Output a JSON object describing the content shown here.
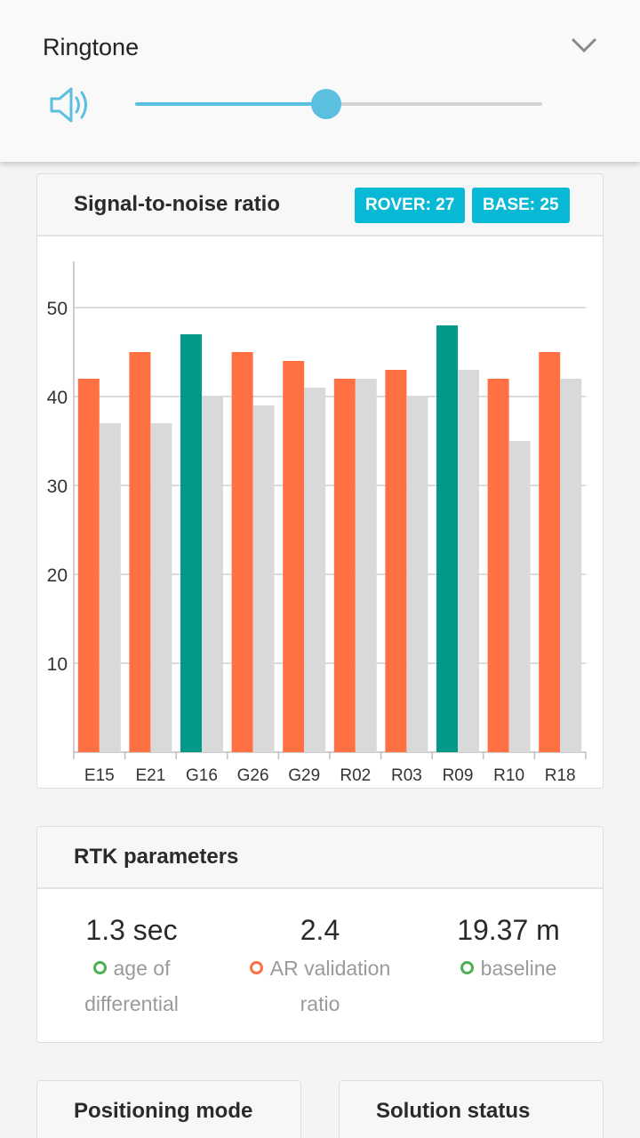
{
  "volume": {
    "title": "Ringtone",
    "level": 0.47
  },
  "snr_card": {
    "title": "Signal-to-noise ratio",
    "rover_badge": "ROVER: 27",
    "base_badge": "BASE: 25"
  },
  "chart_data": {
    "type": "bar",
    "categories": [
      "E15",
      "E21",
      "G16",
      "G26",
      "G29",
      "R02",
      "R03",
      "R09",
      "R10",
      "R18"
    ],
    "series": [
      {
        "values": [
          42,
          45,
          47,
          45,
          44,
          42,
          43,
          48,
          42,
          45
        ],
        "colors": [
          "#ff7043",
          "#ff7043",
          "#00998a",
          "#ff7043",
          "#ff7043",
          "#ff7043",
          "#ff7043",
          "#00998a",
          "#ff7043",
          "#ff7043"
        ]
      },
      {
        "values": [
          37,
          37,
          40,
          39,
          41,
          42,
          40,
          43,
          35,
          42
        ],
        "color": "#d9d9d9"
      }
    ],
    "yticks": [
      10,
      20,
      30,
      40,
      50
    ],
    "ylim": [
      0,
      55
    ],
    "grid": true
  },
  "rtk_card": {
    "title": "RTK parameters",
    "items": [
      {
        "value": "1.3 sec",
        "label_line1": "age of",
        "label_line2": "differential",
        "status": "green"
      },
      {
        "value": "2.4",
        "label_line1": "AR validation",
        "label_line2": "ratio",
        "status": "orange"
      },
      {
        "value": "19.37 m",
        "label_line1": "baseline",
        "label_line2": "",
        "status": "green"
      }
    ]
  },
  "positioning_card": {
    "title": "Positioning mode"
  },
  "solution_card": {
    "title": "Solution status"
  },
  "colors": {
    "accent": "#08b9d5",
    "slider": "#5bbfe0",
    "rover_bar": "#ff7043",
    "fixed_bar": "#00998a",
    "base_bar": "#d9d9d9"
  },
  "icons": {
    "speaker": "speaker-icon",
    "chevron": "chevron-down-icon"
  }
}
